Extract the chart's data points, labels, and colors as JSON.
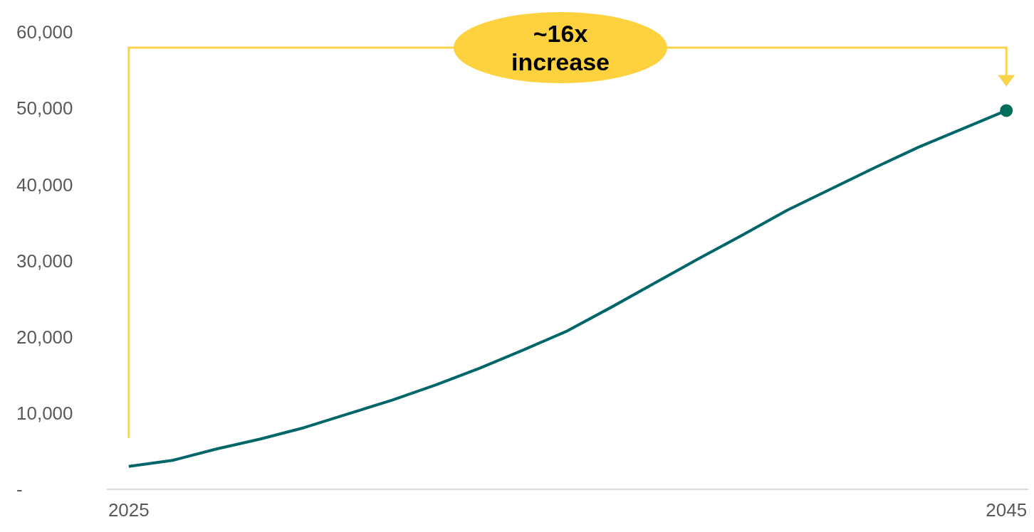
{
  "chart_data": {
    "type": "line",
    "x": [
      2025,
      2026,
      2027,
      2028,
      2029,
      2030,
      2031,
      2032,
      2033,
      2034,
      2035,
      2036,
      2037,
      2038,
      2039,
      2040,
      2041,
      2042,
      2043,
      2044,
      2045
    ],
    "series": [
      {
        "color": "#00666a",
        "marker": "none",
        "values": [
          3000,
          3800,
          5300,
          6600,
          8100,
          9900,
          11700,
          13700,
          15900,
          18300,
          20800,
          23900,
          27100,
          30300,
          33400,
          36600,
          39400,
          42200,
          44900,
          47300,
          49700
        ]
      },
      {
        "type": "scatter",
        "color": "#006e5a",
        "marker": "circle",
        "x": [
          2045
        ],
        "values": [
          49700
        ]
      }
    ],
    "xlim": [
      2024.5,
      2045.5
    ],
    "xticks": [
      2025,
      2045
    ],
    "ylim": [
      0,
      60000
    ],
    "yticks": [
      {
        "value": 0,
        "label": "-"
      },
      {
        "value": 10000,
        "label": "10,000"
      },
      {
        "value": 20000,
        "label": "20,000"
      },
      {
        "value": 30000,
        "label": "30,000"
      },
      {
        "value": 40000,
        "label": "40,000"
      },
      {
        "value": 50000,
        "label": "50,000"
      },
      {
        "value": 60000,
        "label": "60,000"
      }
    ],
    "annotations": [
      "~16x increase"
    ],
    "grid": false
  }
}
